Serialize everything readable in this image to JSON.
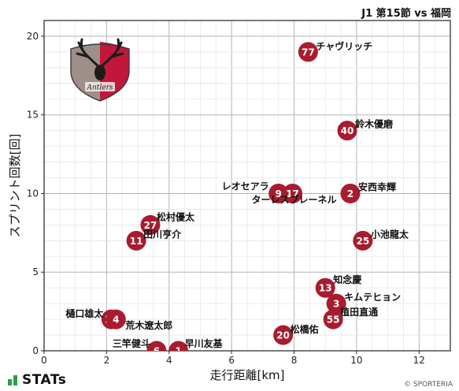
{
  "header": {
    "title": "J1 第15節 vs 福岡"
  },
  "footer": {
    "brand": "STATs",
    "copyright": "© SPORTERIA"
  },
  "logo": {
    "icon": "kashima-antlers-crest-icon",
    "text": "Antlers",
    "color_red": "#c0173a",
    "color_grey": "#9e8f89"
  },
  "colors": {
    "marker": "#a81c2e",
    "marker_text": "#ffffff",
    "grid": "#cfcfcf"
  },
  "chart_data": {
    "type": "scatter",
    "xlabel": "走行距離[km]",
    "ylabel": "スプリント回数[回]",
    "xlim": [
      0,
      13
    ],
    "ylim": [
      0,
      21
    ],
    "xticks": [
      0,
      2,
      4,
      6,
      8,
      10,
      12
    ],
    "yticks": [
      0,
      5,
      10,
      15,
      20
    ],
    "grid": true,
    "points": [
      {
        "number": "77",
        "name": "チャヴリッチ",
        "x": 8.45,
        "y": 19
      },
      {
        "number": "40",
        "name": "鈴木優磨",
        "x": 9.7,
        "y": 14
      },
      {
        "number": "9",
        "name": "レオセアラ",
        "x": 7.5,
        "y": 10
      },
      {
        "number": "17",
        "name": "ターレスブレーネル",
        "x": 7.95,
        "y": 10
      },
      {
        "number": "2",
        "name": "安西幸輝",
        "x": 9.8,
        "y": 10
      },
      {
        "number": "27",
        "name": "松村優太",
        "x": 3.4,
        "y": 8
      },
      {
        "number": "11",
        "name": "田川亨介",
        "x": 2.95,
        "y": 7
      },
      {
        "number": "25",
        "name": "小池龍太",
        "x": 10.2,
        "y": 7
      },
      {
        "number": "13",
        "name": "知念慶",
        "x": 9.0,
        "y": 4
      },
      {
        "number": "3",
        "name": "キムテヒョン",
        "x": 9.35,
        "y": 3
      },
      {
        "number": "55",
        "name": "植田直通",
        "x": 9.25,
        "y": 2
      },
      {
        "number": "14",
        "name": "樋口雄太",
        "x": 2.15,
        "y": 2
      },
      {
        "number": "4",
        "name": "荒木遼太郎",
        "x": 2.3,
        "y": 2
      },
      {
        "number": "20",
        "name": "松橋佑",
        "x": 7.65,
        "y": 1
      },
      {
        "number": "6",
        "name": "三竿健斗",
        "x": 3.6,
        "y": 0
      },
      {
        "number": "1",
        "name": "早川友基",
        "x": 4.3,
        "y": 0
      }
    ]
  }
}
